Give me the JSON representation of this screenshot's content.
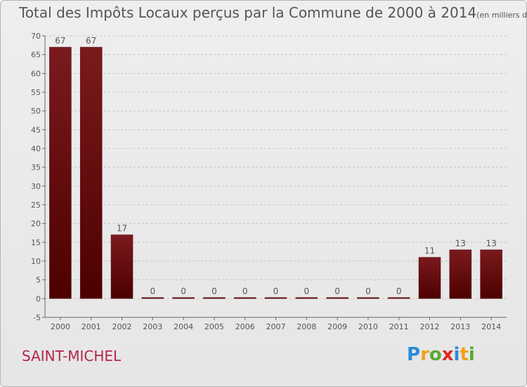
{
  "title": "Total des Impôts Locaux perçus par la Commune de 2000 à 2014",
  "title_unit": "(en milliers d'€)",
  "commune": "SAINT-MICHEL",
  "logo": {
    "text": "Proxiti",
    "letters": [
      {
        "ch": "P",
        "color": "#2b8bd6"
      },
      {
        "ch": "r",
        "color": "#f0a21b"
      },
      {
        "ch": "o",
        "color": "#5aa832"
      },
      {
        "ch": "x",
        "color": "#e0281f"
      },
      {
        "ch": "i",
        "color": "#2b8bd6"
      },
      {
        "ch": "t",
        "color": "#f0a21b"
      },
      {
        "ch": "i",
        "color": "#5aa832"
      }
    ]
  },
  "chart_data": {
    "type": "bar",
    "categories": [
      "2000",
      "2001",
      "2002",
      "2003",
      "2004",
      "2005",
      "2006",
      "2007",
      "2008",
      "2009",
      "2010",
      "2011",
      "2012",
      "2013",
      "2014"
    ],
    "values": [
      67,
      67,
      17,
      0,
      0,
      0,
      0,
      0,
      0,
      0,
      0,
      0,
      11,
      13,
      13
    ],
    "ylim": [
      -5,
      70
    ],
    "yticks": [
      -5,
      0,
      5,
      10,
      15,
      20,
      25,
      30,
      35,
      40,
      45,
      50,
      55,
      60,
      65,
      70
    ],
    "grid": "horizontal-dashed",
    "bar_color": "#7a1a1e",
    "bar_color_dark": "#4d0000"
  }
}
